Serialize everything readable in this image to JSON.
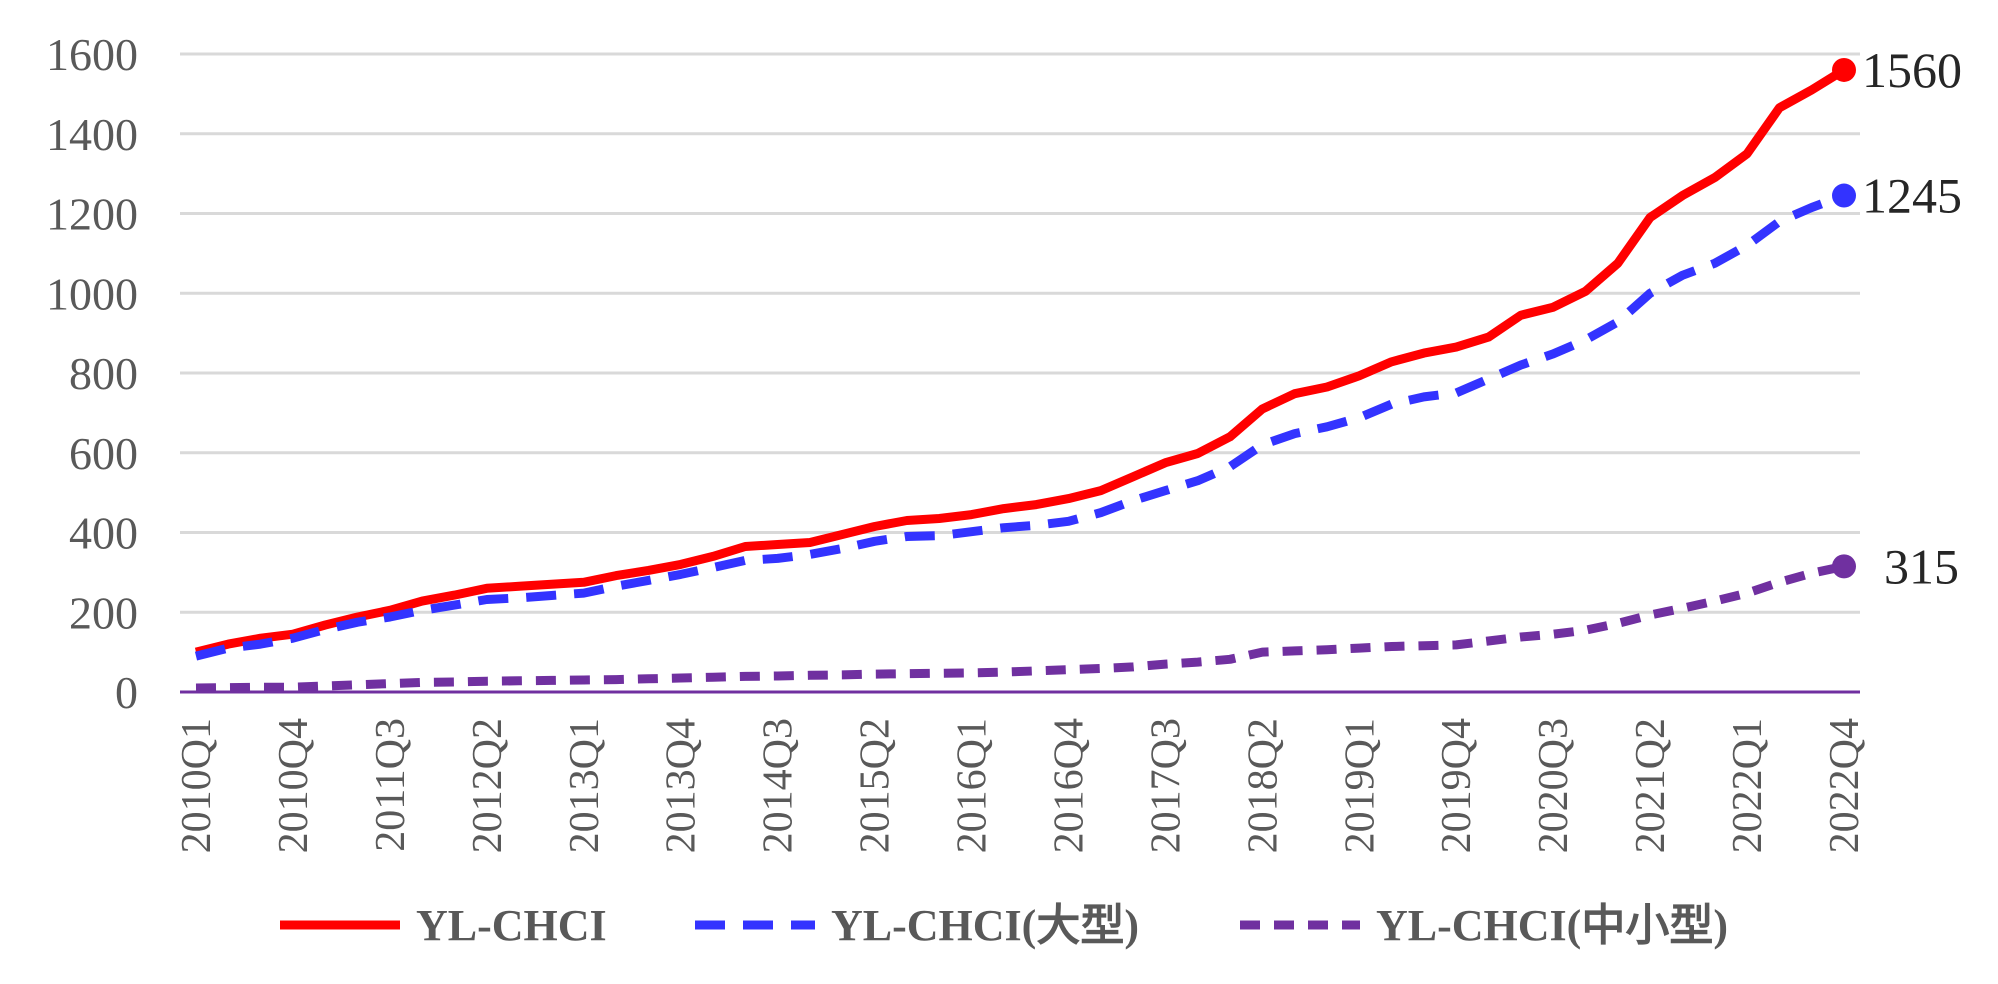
{
  "chart_data": {
    "type": "line",
    "ylim": [
      0,
      1600
    ],
    "yticks": [
      0,
      200,
      400,
      600,
      800,
      1000,
      1200,
      1400,
      1600
    ],
    "grid": true,
    "legend_position": "bottom",
    "x": [
      "2010Q1",
      "2010Q2",
      "2010Q3",
      "2010Q4",
      "2011Q1",
      "2011Q2",
      "2011Q3",
      "2011Q4",
      "2012Q1",
      "2012Q2",
      "2012Q3",
      "2012Q4",
      "2013Q1",
      "2013Q2",
      "2013Q3",
      "2013Q4",
      "2014Q1",
      "2014Q2",
      "2014Q3",
      "2014Q4",
      "2015Q1",
      "2015Q2",
      "2015Q3",
      "2015Q4",
      "2016Q1",
      "2016Q2",
      "2016Q3",
      "2016Q4",
      "2017Q1",
      "2017Q2",
      "2017Q3",
      "2017Q4",
      "2018Q1",
      "2018Q2",
      "2018Q3",
      "2018Q4",
      "2019Q1",
      "2019Q2",
      "2019Q3",
      "2019Q4",
      "2020Q1",
      "2020Q2",
      "2020Q3",
      "2020Q4",
      "2021Q1",
      "2021Q2",
      "2021Q3",
      "2021Q4",
      "2022Q1",
      "2022Q2",
      "2022Q3",
      "2022Q4"
    ],
    "x_tick_labels": [
      "2010Q1",
      "2010Q4",
      "2011Q3",
      "2012Q2",
      "2013Q1",
      "2013Q4",
      "2014Q3",
      "2015Q2",
      "2016Q1",
      "2016Q4",
      "2017Q3",
      "2018Q2",
      "2019Q1",
      "2019Q4",
      "2020Q3",
      "2021Q2",
      "2022Q1",
      "2022Q4"
    ],
    "series": [
      {
        "name": "YL-CHCI",
        "color": "#ff0000",
        "style": "solid",
        "end_label": "1560",
        "values": [
          100,
          120,
          135,
          145,
          168,
          188,
          205,
          228,
          243,
          260,
          265,
          270,
          275,
          292,
          305,
          320,
          340,
          365,
          370,
          375,
          395,
          415,
          430,
          435,
          445,
          460,
          470,
          485,
          505,
          540,
          575,
          598,
          640,
          710,
          748,
          765,
          793,
          828,
          850,
          865,
          890,
          945,
          965,
          1005,
          1075,
          1190,
          1245,
          1290,
          1350,
          1465,
          1510,
          1560
        ]
      },
      {
        "name": "YL-CHCI(大型)",
        "color": "#3333ff",
        "style": "dashed",
        "end_label": "1245",
        "values": [
          90,
          110,
          120,
          135,
          157,
          175,
          188,
          205,
          218,
          232,
          236,
          242,
          248,
          265,
          280,
          295,
          312,
          330,
          335,
          345,
          360,
          378,
          390,
          392,
          402,
          412,
          418,
          428,
          450,
          480,
          505,
          530,
          565,
          620,
          648,
          665,
          688,
          722,
          740,
          750,
          785,
          820,
          848,
          883,
          928,
          1000,
          1045,
          1075,
          1120,
          1180,
          1215,
          1245
        ]
      },
      {
        "name": "YL-CHCI(中小型)",
        "color": "#7030a0",
        "style": "dashed",
        "end_label": "315",
        "values": [
          10,
          11,
          12,
          12,
          15,
          18,
          21,
          24,
          25,
          27,
          28,
          29,
          30,
          31,
          33,
          35,
          37,
          39,
          40,
          42,
          43,
          45,
          46,
          47,
          48,
          50,
          53,
          56,
          59,
          63,
          70,
          75,
          82,
          100,
          103,
          106,
          110,
          114,
          116,
          118,
          128,
          138,
          145,
          155,
          172,
          193,
          210,
          228,
          248,
          275,
          298,
          315
        ]
      }
    ]
  }
}
